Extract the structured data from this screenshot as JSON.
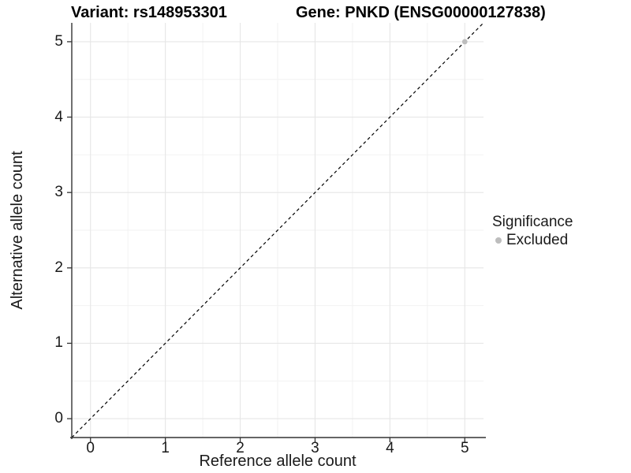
{
  "chart_data": {
    "type": "scatter",
    "titles": {
      "left": "Variant: rs148953301",
      "right": "Gene: PNKD (ENSG00000127838)"
    },
    "xlabel": "Reference allele count",
    "ylabel": "Alternative allele count",
    "xlim": [
      -0.25,
      5.25
    ],
    "ylim": [
      -0.25,
      5.25
    ],
    "xticks": [
      0,
      1,
      2,
      3,
      4,
      5
    ],
    "yticks": [
      0,
      1,
      2,
      3,
      4,
      5
    ],
    "minor_gridlines_x": [
      0.5,
      1.5,
      2.5,
      3.5,
      4.5
    ],
    "minor_gridlines_y": [
      0.5,
      1.5,
      2.5,
      3.5,
      4.5
    ],
    "grid": true,
    "series": [
      {
        "name": "Excluded",
        "color": "#bdbdbd",
        "marker": "circle",
        "points": [
          [
            5,
            5
          ]
        ]
      }
    ],
    "reference_line": {
      "slope": 1,
      "intercept": 0,
      "linetype": "dashed",
      "color": "#000000"
    },
    "legend": {
      "title": "Significance",
      "position": "right",
      "items": [
        {
          "label": "Excluded",
          "color": "#bdbdbd"
        }
      ]
    },
    "colors": {
      "background": "#ffffff",
      "major_grid": "#e6e6e6",
      "minor_grid": "#f2f2f2",
      "axis_line": "#333333",
      "tick_text": "#1a1a1a",
      "point": "#bdbdbd"
    }
  }
}
